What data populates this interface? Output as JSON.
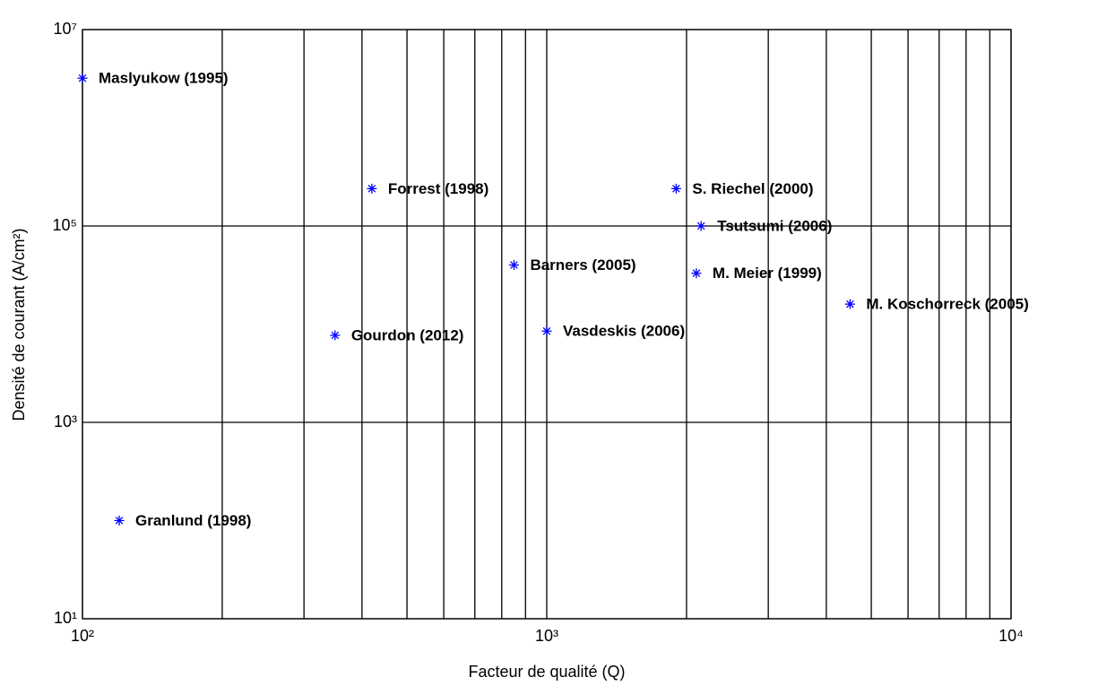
{
  "chart_data": {
    "type": "scatter",
    "xlabel": "Facteur de qualité (Q)",
    "ylabel": "Densité de courant (A/cm²)",
    "log_x": true,
    "log_y": true,
    "grid": true,
    "color": "#0000ff",
    "marker": "*",
    "xlim": [
      100,
      10000
    ],
    "ylim": [
      10,
      10000000
    ],
    "xticks": [
      {
        "value": 100,
        "label": "10²"
      },
      {
        "value": 1000,
        "label": "10³"
      },
      {
        "value": 10000,
        "label": "10⁴"
      }
    ],
    "xminorticks": [
      200,
      300,
      400,
      500,
      600,
      700,
      800,
      900,
      2000,
      3000,
      4000,
      5000,
      6000,
      7000,
      8000,
      9000
    ],
    "yticks": [
      {
        "value": 10,
        "label": "10¹"
      },
      {
        "value": 1000,
        "label": "10³"
      },
      {
        "value": 100000,
        "label": "10⁵"
      },
      {
        "value": 10000000,
        "label": "10⁷"
      }
    ],
    "labels": [
      "Maslyukow (1995)",
      "Forrest (1998)",
      "S. Riechel (2000)",
      "Tsutsumi (2006)",
      "Barners (2005)",
      "M. Meier (1999)",
      "M. Koschorreck (2005)",
      "Gourdon (2012)",
      "Vasdeskis (2006)",
      "Granlund (1998)"
    ],
    "x": [
      100,
      420,
      1900,
      2150,
      850,
      2100,
      4500,
      350,
      1000,
      120
    ],
    "values": [
      3200000,
      240000,
      240000,
      100000,
      40000,
      33000,
      16000,
      7700,
      8500,
      100
    ]
  }
}
